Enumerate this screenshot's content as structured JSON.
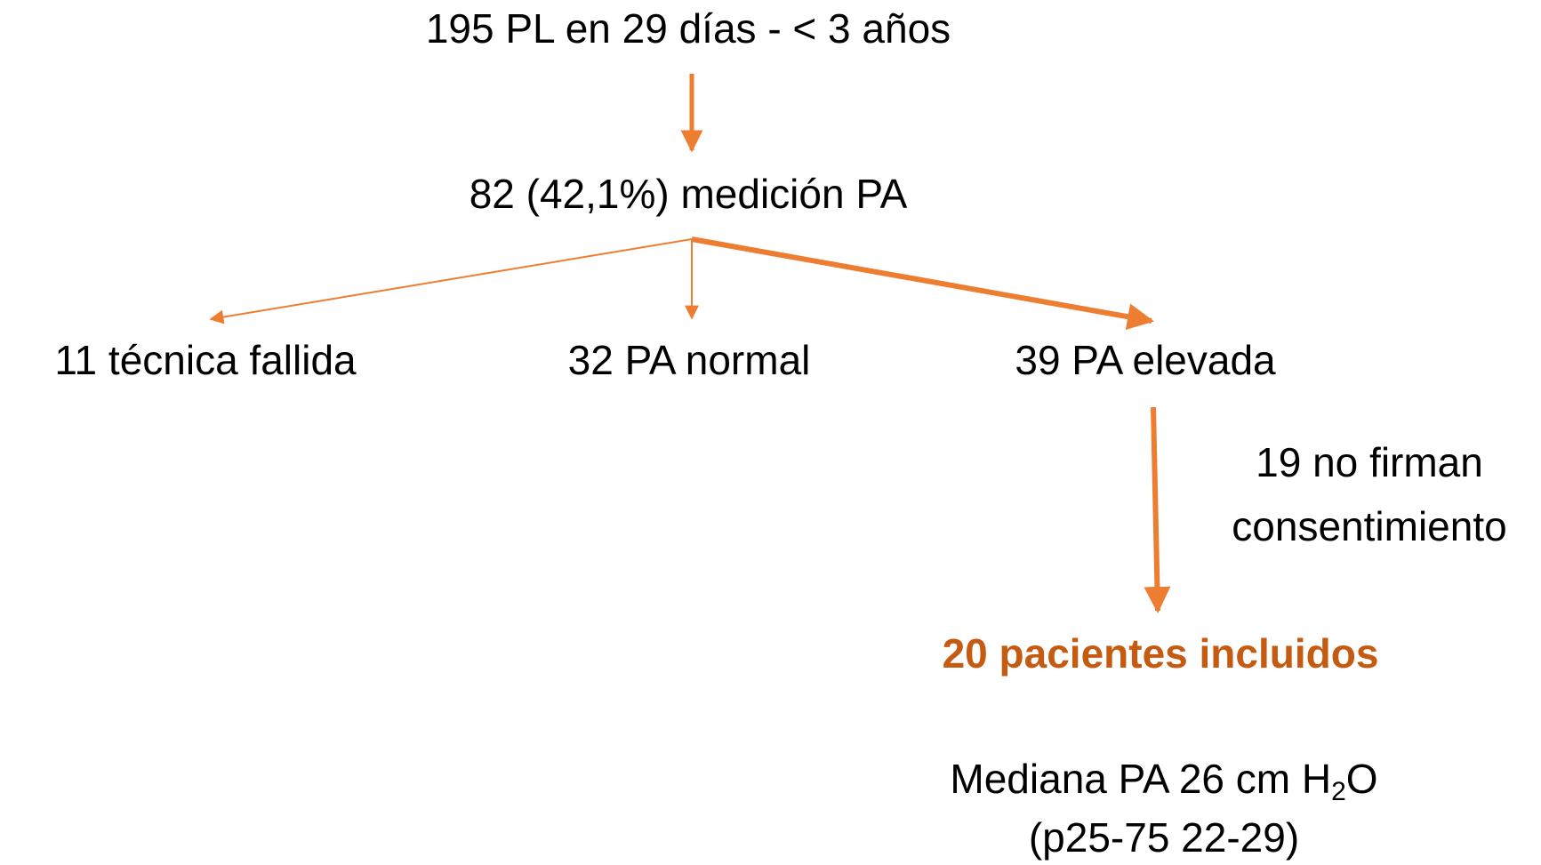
{
  "nodes": [
    {
      "label": "195 PL en 29 días - < 3 años"
    },
    {
      "label": "82 (42,1%) medición PA"
    },
    {
      "label": "11 técnica fallida"
    },
    {
      "label": "32 PA normal"
    },
    {
      "label": "39 PA elevada"
    },
    {
      "label": "20 pacientes incluidos"
    }
  ],
  "exclusion": {
    "line1": "19 no firman",
    "line2": "consentimiento"
  },
  "median": {
    "prefix": "Mediana PA 26 cm H",
    "subscript": "2",
    "suffix": "O",
    "range": "(p25-75 22-29)"
  }
}
